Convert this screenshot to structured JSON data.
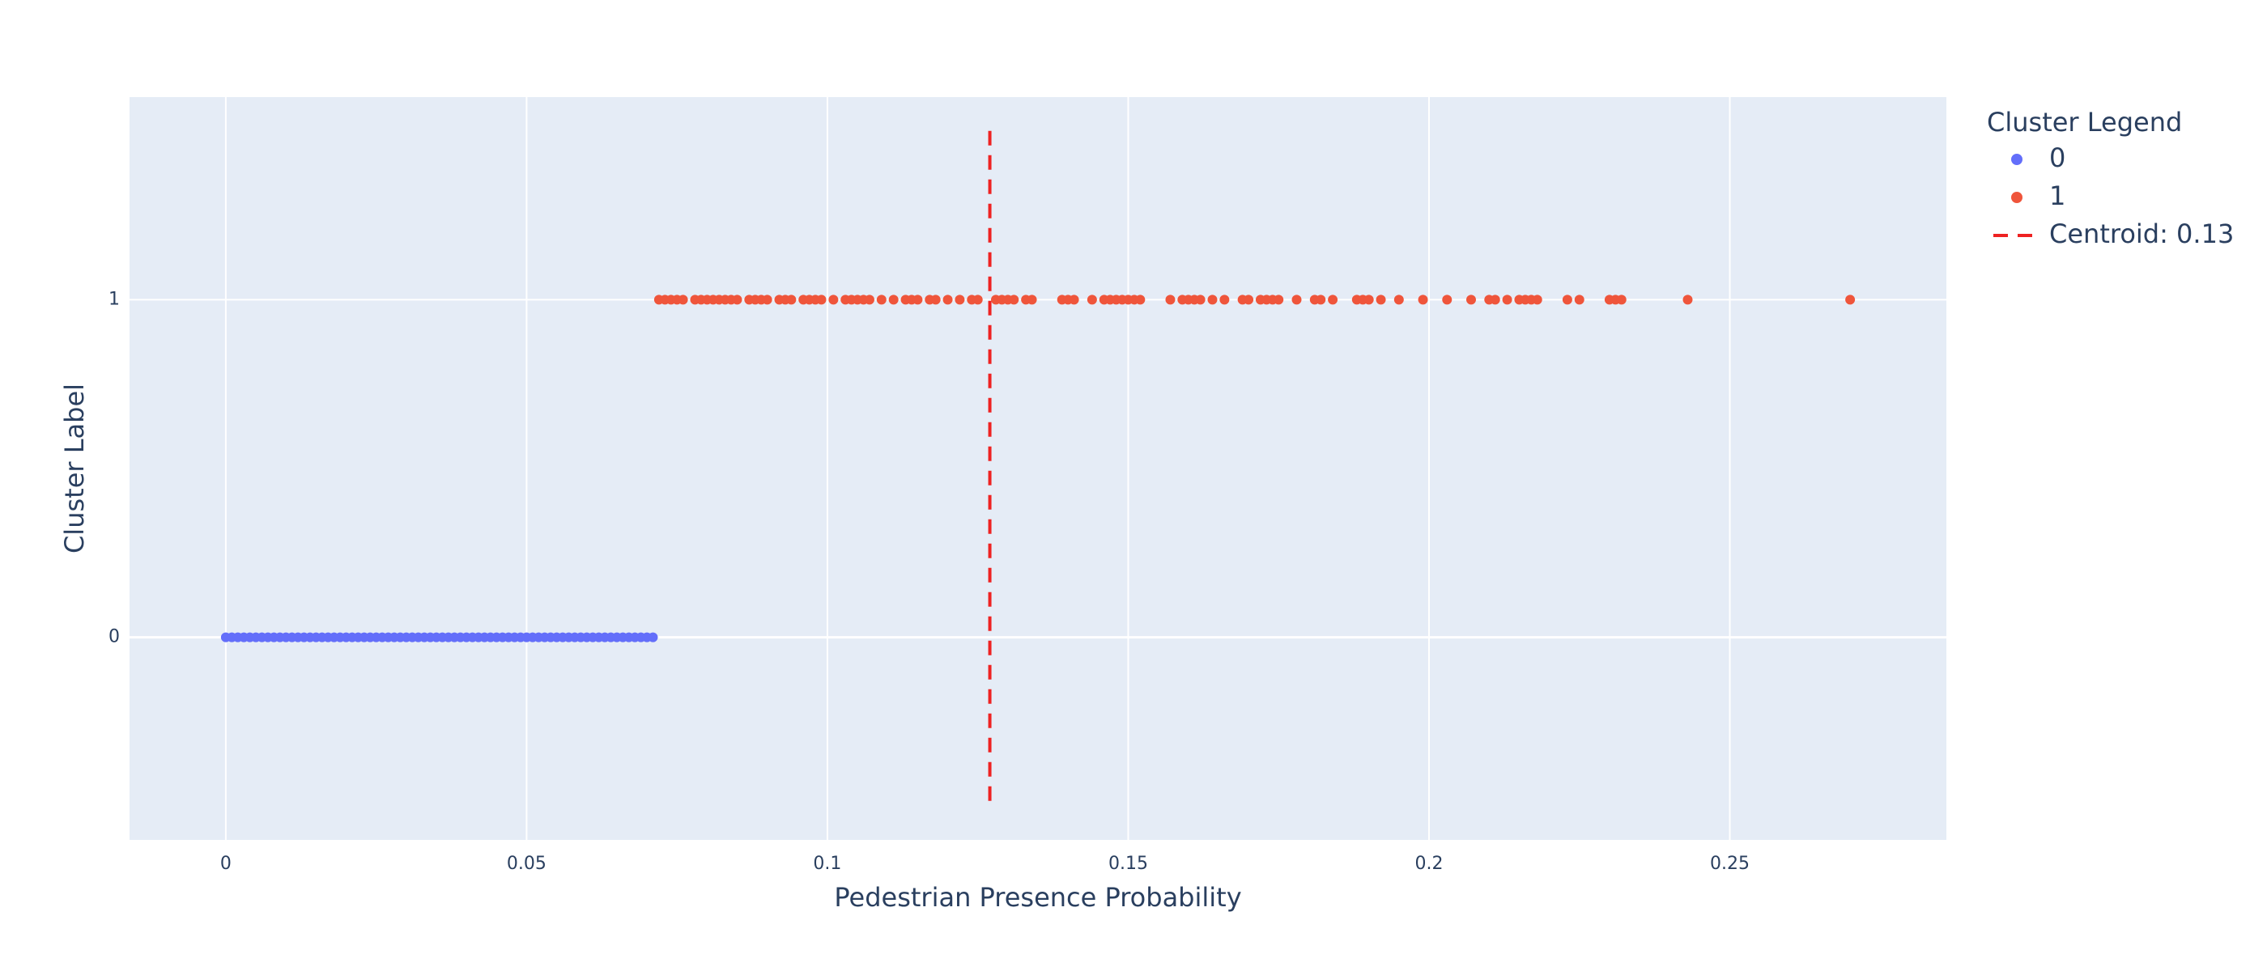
{
  "chart_data": {
    "type": "scatter",
    "title": "",
    "xlabel": "Pedestrian Presence Probability",
    "ylabel": "Cluster Label",
    "xlim": [
      -0.016,
      0.286
    ],
    "ylim": [
      -0.6,
      1.6
    ],
    "x_ticks": [
      0,
      0.05,
      0.1,
      0.15,
      0.2,
      0.25
    ],
    "x_tick_labels": [
      "0",
      "0.05",
      "0.1",
      "0.15",
      "0.2",
      "0.25"
    ],
    "y_ticks": [
      0,
      1
    ],
    "y_tick_labels": [
      "0",
      "1"
    ],
    "grid": true,
    "legend": {
      "title": "Cluster Legend",
      "position": "right"
    },
    "series": [
      {
        "name": "0",
        "color": "#636efa",
        "y": 0,
        "x": [
          0.0,
          0.001,
          0.002,
          0.003,
          0.004,
          0.005,
          0.006,
          0.007,
          0.008,
          0.009,
          0.01,
          0.011,
          0.012,
          0.013,
          0.014,
          0.015,
          0.016,
          0.017,
          0.018,
          0.019,
          0.02,
          0.021,
          0.022,
          0.023,
          0.024,
          0.025,
          0.026,
          0.027,
          0.028,
          0.029,
          0.03,
          0.031,
          0.032,
          0.033,
          0.034,
          0.035,
          0.036,
          0.037,
          0.038,
          0.039,
          0.04,
          0.041,
          0.042,
          0.043,
          0.044,
          0.045,
          0.046,
          0.047,
          0.048,
          0.049,
          0.05,
          0.051,
          0.052,
          0.053,
          0.054,
          0.055,
          0.056,
          0.057,
          0.058,
          0.059,
          0.06,
          0.061,
          0.062,
          0.063,
          0.064,
          0.065,
          0.066,
          0.067,
          0.068,
          0.069,
          0.07,
          0.071
        ]
      },
      {
        "name": "1",
        "color": "#ef553b",
        "y": 1,
        "x": [
          0.072,
          0.073,
          0.074,
          0.075,
          0.076,
          0.078,
          0.079,
          0.08,
          0.081,
          0.082,
          0.083,
          0.084,
          0.085,
          0.087,
          0.088,
          0.089,
          0.09,
          0.092,
          0.093,
          0.094,
          0.096,
          0.097,
          0.098,
          0.099,
          0.101,
          0.103,
          0.104,
          0.105,
          0.106,
          0.107,
          0.109,
          0.111,
          0.113,
          0.114,
          0.115,
          0.117,
          0.118,
          0.12,
          0.122,
          0.124,
          0.125,
          0.128,
          0.129,
          0.13,
          0.131,
          0.133,
          0.134,
          0.139,
          0.14,
          0.141,
          0.144,
          0.146,
          0.147,
          0.148,
          0.149,
          0.15,
          0.151,
          0.152,
          0.157,
          0.159,
          0.16,
          0.161,
          0.162,
          0.164,
          0.166,
          0.169,
          0.17,
          0.172,
          0.173,
          0.174,
          0.175,
          0.178,
          0.181,
          0.182,
          0.184,
          0.188,
          0.189,
          0.19,
          0.192,
          0.195,
          0.199,
          0.203,
          0.207,
          0.21,
          0.211,
          0.213,
          0.215,
          0.216,
          0.217,
          0.218,
          0.223,
          0.225,
          0.23,
          0.231,
          0.232,
          0.243,
          0.27
        ]
      }
    ],
    "reference_lines": [
      {
        "name": "Centroid: 0.13",
        "color": "#ee2222",
        "dash": "dash",
        "x": 0.127,
        "y_range": [
          -0.5,
          1.5
        ]
      }
    ]
  }
}
